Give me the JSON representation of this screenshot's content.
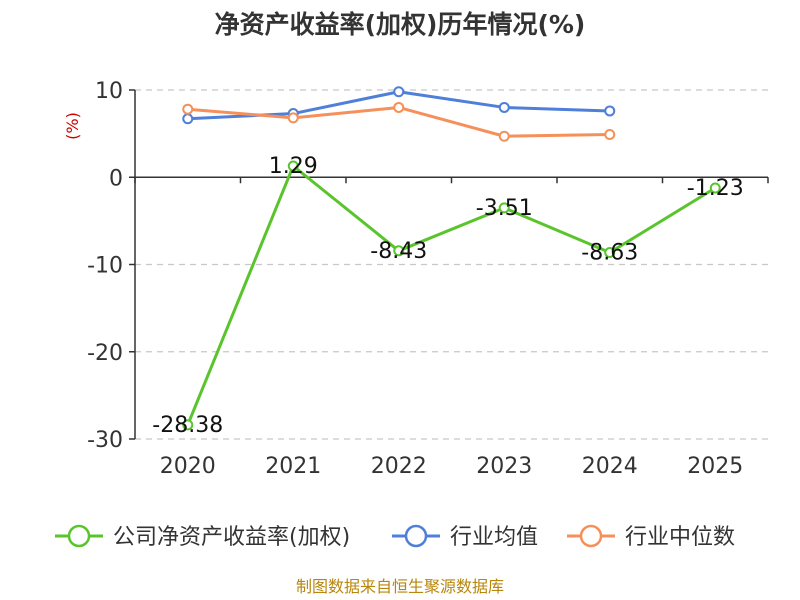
{
  "chart_data": {
    "type": "line",
    "title": "净资产收益率(加权)历年情况(%)",
    "ylabel": "(%)",
    "xlabel": "",
    "categories": [
      "2020",
      "2021",
      "2022",
      "2023",
      "2024",
      "2025"
    ],
    "yticks": [
      "10",
      "0",
      "-10",
      "-20",
      "-30"
    ],
    "ylim": [
      -30,
      10
    ],
    "grid": true,
    "legend_position": "bottom",
    "series": [
      {
        "name": "公司净资产收益率(加权)",
        "color": "#5ac42d",
        "values": [
          -28.38,
          1.29,
          -8.43,
          -3.51,
          -8.63,
          -1.23
        ],
        "labels": [
          "-28.38",
          "1.29",
          "-8.43",
          "-3.51",
          "-8.63",
          "-1.23"
        ]
      },
      {
        "name": "行业均值",
        "color": "#4f7fd8",
        "values": [
          6.7,
          7.3,
          9.8,
          8.0,
          7.6,
          null
        ]
      },
      {
        "name": "行业中位数",
        "color": "#f5905a",
        "values": [
          7.8,
          6.8,
          8.0,
          4.7,
          4.9,
          null
        ]
      }
    ]
  },
  "source_note": "制图数据来自恒生聚源数据库"
}
